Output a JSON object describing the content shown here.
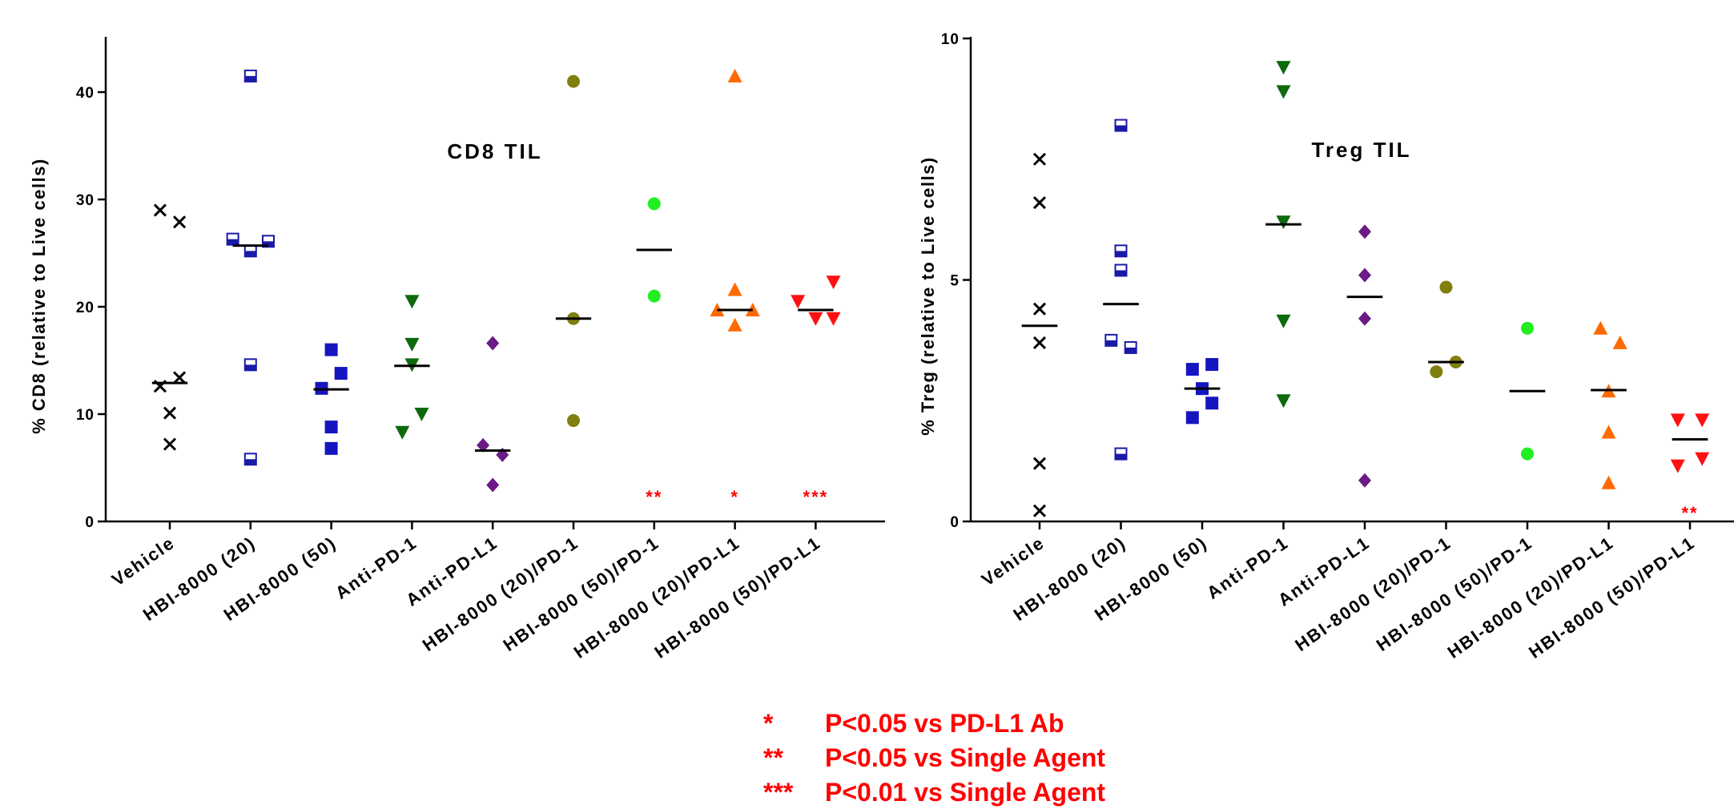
{
  "colors": {
    "sig": "#ff0000",
    "groups": [
      "#000000",
      "#1a1aa8",
      "#1515c0",
      "#0d6a0d",
      "#6b1b86",
      "#7f7f0f",
      "#22ee22",
      "#ff6a00",
      "#ff1111"
    ]
  },
  "markers": [
    "x",
    "halfsquare",
    "square",
    "tri-down",
    "diamond",
    "circle",
    "circle",
    "tri-up",
    "tri-down"
  ],
  "legend": [
    {
      "mark": "*",
      "text": "P<0.05 vs PD-L1 Ab"
    },
    {
      "mark": "**",
      "text": "P<0.05 vs Single Agent"
    },
    {
      "mark": "***",
      "text": "P<0.01 vs Single Agent"
    }
  ],
  "chart_data": [
    {
      "type": "scatter",
      "title": "CD8 TIL",
      "ylabel": "% CD8 (relative to Live cells)",
      "ylim": [
        0,
        45
      ],
      "yticks": [
        "0",
        "10",
        "20",
        "30",
        "40"
      ],
      "categories": [
        "Vehicle",
        "HBI-8000 (20)",
        "HBI-8000 (50)",
        "Anti-PD-1",
        "Anti-PD-L1",
        "HBI-8000 (20)/PD-1",
        "HBI-8000 (50)/PD-1",
        "HBI-8000 (20)/PD-L1",
        "HBI-8000 (50)/PD-L1"
      ],
      "series": [
        {
          "values": [
            [
              -0.12,
              29.0
            ],
            [
              0.12,
              27.9
            ],
            [
              -0.12,
              12.6
            ],
            [
              0.12,
              13.4
            ],
            [
              0.0,
              10.1
            ],
            [
              0.0,
              7.2
            ]
          ],
          "mean": 12.9
        },
        {
          "values": [
            [
              0.0,
              41.5
            ],
            [
              -0.22,
              26.3
            ],
            [
              0.22,
              26.1
            ],
            [
              0.0,
              25.2
            ],
            [
              0.0,
              14.6
            ],
            [
              0.0,
              5.8
            ]
          ],
          "mean": 25.7
        },
        {
          "values": [
            [
              0.0,
              16.0
            ],
            [
              0.12,
              13.8
            ],
            [
              -0.12,
              12.4
            ],
            [
              0.0,
              8.8
            ],
            [
              0.0,
              6.8
            ]
          ],
          "mean": 12.3
        },
        {
          "values": [
            [
              0.0,
              20.5
            ],
            [
              0.0,
              16.5
            ],
            [
              0.0,
              14.6
            ],
            [
              0.12,
              10.0
            ],
            [
              -0.12,
              8.3
            ]
          ],
          "mean": 14.5
        },
        {
          "values": [
            [
              0.0,
              16.6
            ],
            [
              -0.12,
              7.1
            ],
            [
              0.12,
              6.2
            ],
            [
              0.0,
              3.4
            ]
          ],
          "mean": 6.6
        },
        {
          "values": [
            [
              0.0,
              41.0
            ],
            [
              0.0,
              18.9
            ],
            [
              0.0,
              9.4
            ]
          ],
          "mean": 18.9
        },
        {
          "values": [
            [
              0.0,
              29.6
            ],
            [
              0.0,
              21.0
            ]
          ],
          "mean": 25.3
        },
        {
          "values": [
            [
              0.0,
              41.5
            ],
            [
              0.0,
              21.6
            ],
            [
              -0.22,
              19.7
            ],
            [
              0.22,
              19.7
            ],
            [
              0.0,
              18.3
            ]
          ],
          "mean": 19.7
        },
        {
          "values": [
            [
              0.22,
              22.3
            ],
            [
              -0.22,
              20.5
            ],
            [
              0.0,
              18.9
            ],
            [
              0.22,
              18.9
            ]
          ],
          "mean": 19.7
        }
      ],
      "significance": [
        "",
        "",
        "",
        "",
        "",
        "",
        "**",
        "*",
        "***"
      ]
    },
    {
      "type": "scatter",
      "title": "Treg TIL",
      "ylabel": "% Treg (relative to Live cells)",
      "ylim": [
        0,
        10
      ],
      "yticks": [
        "0",
        "5",
        "10"
      ],
      "categories": [
        "Vehicle",
        "HBI-8000 (20)",
        "HBI-8000 (50)",
        "Anti-PD-1",
        "Anti-PD-L1",
        "HBI-8000 (20)/PD-1",
        "HBI-8000 (50)/PD-1",
        "HBI-8000 (20)/PD-L1",
        "HBI-8000 (50)/PD-L1"
      ],
      "series": [
        {
          "values": [
            [
              0.0,
              7.5
            ],
            [
              0.0,
              6.6
            ],
            [
              0.0,
              4.4
            ],
            [
              0.0,
              3.7
            ],
            [
              0.0,
              1.2
            ],
            [
              0.0,
              0.22
            ]
          ],
          "mean": 4.05
        },
        {
          "values": [
            [
              0.0,
              8.2
            ],
            [
              0.0,
              5.6
            ],
            [
              0.0,
              5.2
            ],
            [
              -0.12,
              3.75
            ],
            [
              0.12,
              3.6
            ],
            [
              0.0,
              1.4
            ]
          ],
          "mean": 4.5
        },
        {
          "values": [
            [
              -0.12,
              3.15
            ],
            [
              0.12,
              3.25
            ],
            [
              0.0,
              2.75
            ],
            [
              0.12,
              2.45
            ],
            [
              -0.12,
              2.15
            ]
          ],
          "mean": 2.75
        },
        {
          "values": [
            [
              0.0,
              9.4
            ],
            [
              0.0,
              8.9
            ],
            [
              0.0,
              6.2
            ],
            [
              0.0,
              4.15
            ],
            [
              0.0,
              2.5
            ]
          ],
          "mean": 6.15
        },
        {
          "values": [
            [
              0.0,
              6.0
            ],
            [
              0.0,
              5.1
            ],
            [
              0.0,
              4.2
            ],
            [
              0.0,
              0.85
            ]
          ],
          "mean": 4.65
        },
        {
          "values": [
            [
              0.0,
              4.85
            ],
            [
              0.12,
              3.3
            ],
            [
              -0.12,
              3.1
            ]
          ],
          "mean": 3.3
        },
        {
          "values": [
            [
              0.0,
              4.0
            ],
            [
              0.0,
              1.4
            ]
          ],
          "mean": 2.7
        },
        {
          "values": [
            [
              -0.1,
              4.0
            ],
            [
              0.14,
              3.7
            ],
            [
              0.0,
              2.7
            ],
            [
              0.0,
              1.85
            ],
            [
              0.0,
              0.8
            ]
          ],
          "mean": 2.72
        },
        {
          "values": [
            [
              -0.15,
              2.1
            ],
            [
              0.15,
              2.1
            ],
            [
              -0.15,
              1.15
            ],
            [
              0.15,
              1.3
            ]
          ],
          "mean": 1.7
        }
      ],
      "significance": [
        "",
        "",
        "",
        "",
        "",
        "",
        "",
        "",
        "**"
      ]
    }
  ]
}
